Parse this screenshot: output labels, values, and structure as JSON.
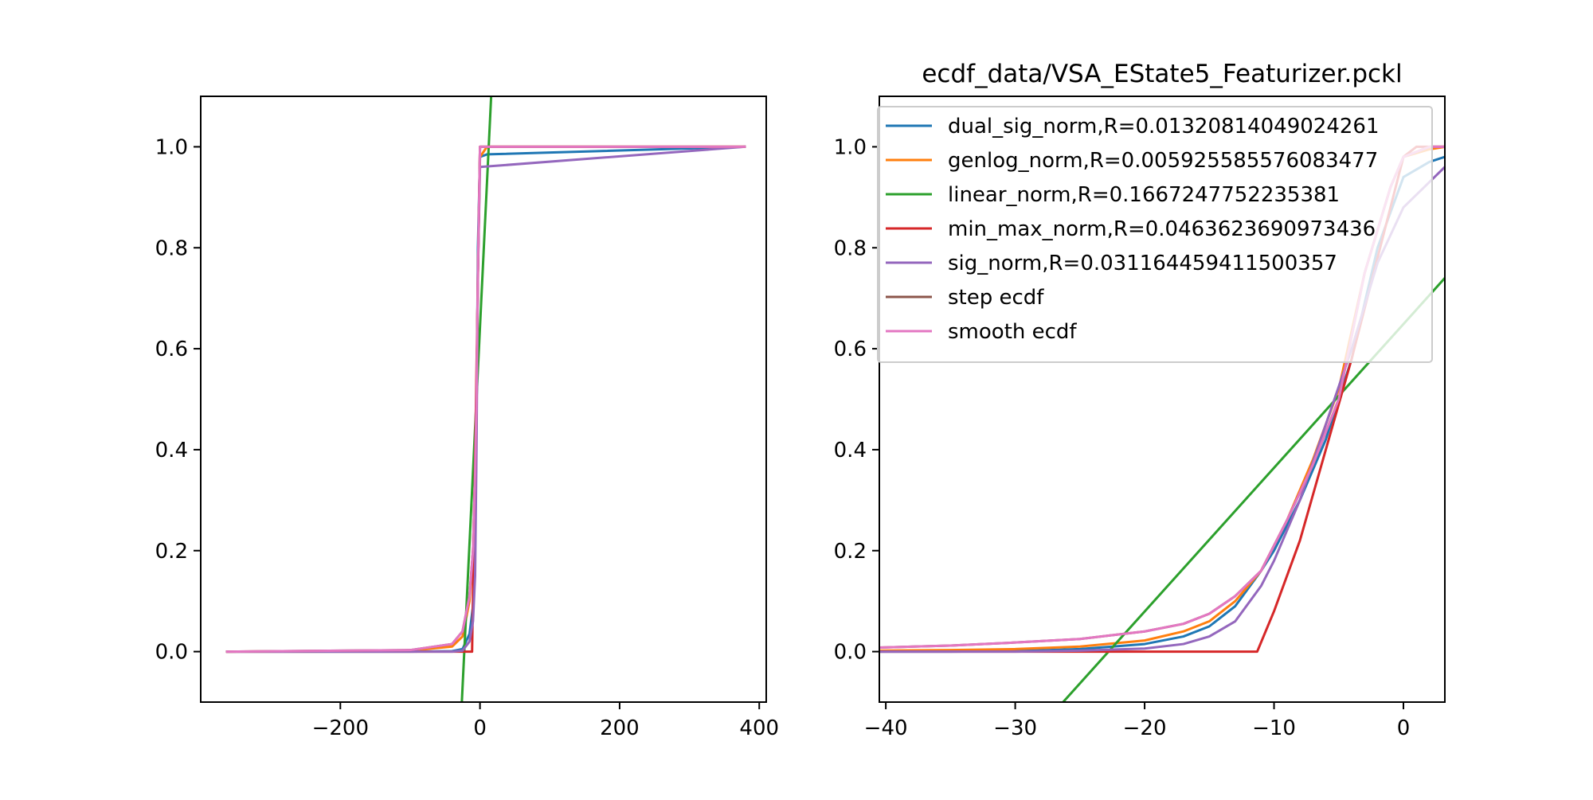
{
  "chart_data": [
    {
      "type": "line",
      "title": "",
      "xlabel": "",
      "ylabel": "",
      "xlim": [
        -400,
        410
      ],
      "ylim": [
        -0.1,
        1.1
      ],
      "xticks": [
        -200,
        0,
        200,
        400
      ],
      "yticks": [
        0.0,
        0.2,
        0.4,
        0.6,
        0.8,
        1.0
      ],
      "xtick_labels": [
        "−200",
        "0",
        "200",
        "400"
      ],
      "ytick_labels": [
        "0.0",
        "0.2",
        "0.4",
        "0.6",
        "0.8",
        "1.0"
      ],
      "grid": false,
      "series": [
        {
          "name": "dual_sig_norm",
          "color": "#1f77b4",
          "points": [
            [
              -362,
              0.0
            ],
            [
              -100,
              0.0
            ],
            [
              -40,
              0.001
            ],
            [
              -25,
              0.005
            ],
            [
              -15,
              0.035
            ],
            [
              -10,
              0.09
            ],
            [
              -7,
              0.2
            ],
            [
              -5,
              0.45
            ],
            [
              -3,
              0.8
            ],
            [
              0,
              0.98
            ],
            [
              10,
              0.985
            ],
            [
              379,
              1.0
            ]
          ]
        },
        {
          "name": "genlog_norm",
          "color": "#ff7f0e",
          "points": [
            [
              -362,
              0.0
            ],
            [
              -100,
              0.002
            ],
            [
              -40,
              0.01
            ],
            [
              -25,
              0.03
            ],
            [
              -15,
              0.1
            ],
            [
              -10,
              0.2
            ],
            [
              -7,
              0.35
            ],
            [
              -5,
              0.5
            ],
            [
              -3,
              0.75
            ],
            [
              0,
              0.98
            ],
            [
              10,
              1.0
            ],
            [
              379,
              1.0
            ]
          ]
        },
        {
          "name": "linear_norm",
          "color": "#2ca02c",
          "points": [
            [
              -26,
              -0.1
            ],
            [
              16,
              1.1
            ]
          ]
        },
        {
          "name": "min_max_norm",
          "color": "#d62728",
          "points": [
            [
              -362,
              0.0
            ],
            [
              -11.3,
              0.0
            ],
            [
              0,
              1.0
            ],
            [
              379,
              1.0
            ]
          ]
        },
        {
          "name": "sig_norm",
          "color": "#9467bd",
          "points": [
            [
              -362,
              0.0
            ],
            [
              -100,
              0.0
            ],
            [
              -40,
              0.0
            ],
            [
              -25,
              0.002
            ],
            [
              -15,
              0.02
            ],
            [
              -10,
              0.06
            ],
            [
              -7,
              0.15
            ],
            [
              -5,
              0.4
            ],
            [
              -3,
              0.75
            ],
            [
              0,
              0.96
            ],
            [
              379,
              1.0
            ]
          ]
        },
        {
          "name": "step ecdf",
          "color": "#8c564b",
          "points": [
            [
              -362,
              0.0
            ],
            [
              -100,
              0.003
            ],
            [
              -40,
              0.015
            ],
            [
              -25,
              0.04
            ],
            [
              -15,
              0.11
            ],
            [
              -10,
              0.2
            ],
            [
              -7,
              0.35
            ],
            [
              -5,
              0.5
            ],
            [
              -3,
              0.75
            ],
            [
              0,
              1.0
            ],
            [
              379,
              1.0
            ]
          ]
        },
        {
          "name": "smooth ecdf",
          "color": "#e377c2",
          "points": [
            [
              -362,
              0.0
            ],
            [
              -100,
              0.003
            ],
            [
              -40,
              0.015
            ],
            [
              -25,
              0.04
            ],
            [
              -15,
              0.11
            ],
            [
              -10,
              0.2
            ],
            [
              -7,
              0.35
            ],
            [
              -5,
              0.5
            ],
            [
              -3,
              0.75
            ],
            [
              0,
              1.0
            ],
            [
              379,
              1.0
            ]
          ]
        }
      ]
    },
    {
      "type": "line",
      "title": "ecdf_data/VSA_EState5_Featurizer.pckl",
      "xlabel": "",
      "ylabel": "",
      "xlim": [
        -40.5,
        3.2
      ],
      "ylim": [
        -0.1,
        1.1
      ],
      "xticks": [
        -40,
        -30,
        -20,
        -10,
        0
      ],
      "yticks": [
        0.0,
        0.2,
        0.4,
        0.6,
        0.8,
        1.0
      ],
      "xtick_labels": [
        "−40",
        "−30",
        "−20",
        "−10",
        "0"
      ],
      "ytick_labels": [
        "0.0",
        "0.2",
        "0.4",
        "0.6",
        "0.8",
        "1.0"
      ],
      "grid": false,
      "legend_loc": "upper-right",
      "series": [
        {
          "name": "dual_sig_norm,R=0.01320814049024261",
          "color": "#1f77b4",
          "points": [
            [
              -40.5,
              0.0
            ],
            [
              -35,
              0.0
            ],
            [
              -30,
              0.001
            ],
            [
              -25,
              0.005
            ],
            [
              -20,
              0.015
            ],
            [
              -17,
              0.03
            ],
            [
              -15,
              0.05
            ],
            [
              -13,
              0.09
            ],
            [
              -11,
              0.16
            ],
            [
              -10,
              0.2
            ],
            [
              -8,
              0.3
            ],
            [
              -6,
              0.42
            ],
            [
              -4,
              0.58
            ],
            [
              -2,
              0.8
            ],
            [
              0,
              0.94
            ],
            [
              2,
              0.97
            ],
            [
              3.2,
              0.98
            ]
          ]
        },
        {
          "name": "genlog_norm,R=0.005925585576083477",
          "color": "#ff7f0e",
          "points": [
            [
              -40.5,
              0.002
            ],
            [
              -35,
              0.003
            ],
            [
              -30,
              0.005
            ],
            [
              -25,
              0.01
            ],
            [
              -20,
              0.022
            ],
            [
              -17,
              0.04
            ],
            [
              -15,
              0.06
            ],
            [
              -13,
              0.1
            ],
            [
              -11,
              0.16
            ],
            [
              -9,
              0.26
            ],
            [
              -7,
              0.38
            ],
            [
              -5,
              0.52
            ],
            [
              -3,
              0.75
            ],
            [
              -1,
              0.92
            ],
            [
              0,
              0.98
            ],
            [
              2,
              0.995
            ],
            [
              3.2,
              1.0
            ]
          ]
        },
        {
          "name": "linear_norm,R=0.1667247752235381",
          "color": "#2ca02c",
          "points": [
            [
              -26.3,
              -0.1
            ],
            [
              3.2,
              0.74
            ]
          ]
        },
        {
          "name": "min_max_norm,R=0.0463623690973436",
          "color": "#d62728",
          "points": [
            [
              -40.5,
              0.0
            ],
            [
              -11.3,
              0.0
            ],
            [
              -10,
              0.08
            ],
            [
              -8,
              0.22
            ],
            [
              -6,
              0.4
            ],
            [
              -4,
              0.58
            ],
            [
              -2,
              0.78
            ],
            [
              0,
              0.98
            ],
            [
              1,
              1.0
            ],
            [
              3.2,
              1.0
            ]
          ]
        },
        {
          "name": "sig_norm,R=0.031164459411500357",
          "color": "#9467bd",
          "points": [
            [
              -40.5,
              0.0
            ],
            [
              -30,
              0.0
            ],
            [
              -25,
              0.002
            ],
            [
              -20,
              0.006
            ],
            [
              -17,
              0.015
            ],
            [
              -15,
              0.03
            ],
            [
              -13,
              0.06
            ],
            [
              -11,
              0.13
            ],
            [
              -10,
              0.18
            ],
            [
              -8,
              0.3
            ],
            [
              -6,
              0.45
            ],
            [
              -4,
              0.6
            ],
            [
              -2,
              0.77
            ],
            [
              0,
              0.88
            ],
            [
              2,
              0.93
            ],
            [
              3.2,
              0.96
            ]
          ]
        },
        {
          "name": "step ecdf",
          "color": "#8c564b",
          "points": [
            [
              -40.5,
              0.008
            ],
            [
              -35,
              0.012
            ],
            [
              -30,
              0.018
            ],
            [
              -25,
              0.025
            ],
            [
              -20,
              0.04
            ],
            [
              -17,
              0.055
            ],
            [
              -15,
              0.075
            ],
            [
              -13,
              0.11
            ],
            [
              -11,
              0.16
            ],
            [
              -9,
              0.26
            ],
            [
              -7,
              0.37
            ],
            [
              -5,
              0.5
            ],
            [
              -3,
              0.75
            ],
            [
              -1,
              0.92
            ],
            [
              0,
              0.98
            ],
            [
              2,
              1.0
            ],
            [
              3.2,
              1.0
            ]
          ]
        },
        {
          "name": "smooth ecdf",
          "color": "#e377c2",
          "points": [
            [
              -40.5,
              0.008
            ],
            [
              -35,
              0.012
            ],
            [
              -30,
              0.018
            ],
            [
              -25,
              0.025
            ],
            [
              -20,
              0.04
            ],
            [
              -17,
              0.055
            ],
            [
              -15,
              0.075
            ],
            [
              -13,
              0.11
            ],
            [
              -11,
              0.16
            ],
            [
              -9,
              0.26
            ],
            [
              -7,
              0.37
            ],
            [
              -5,
              0.5
            ],
            [
              -3,
              0.75
            ],
            [
              -1,
              0.92
            ],
            [
              0,
              0.98
            ],
            [
              2,
              1.0
            ],
            [
              3.2,
              1.0
            ]
          ]
        }
      ]
    }
  ]
}
